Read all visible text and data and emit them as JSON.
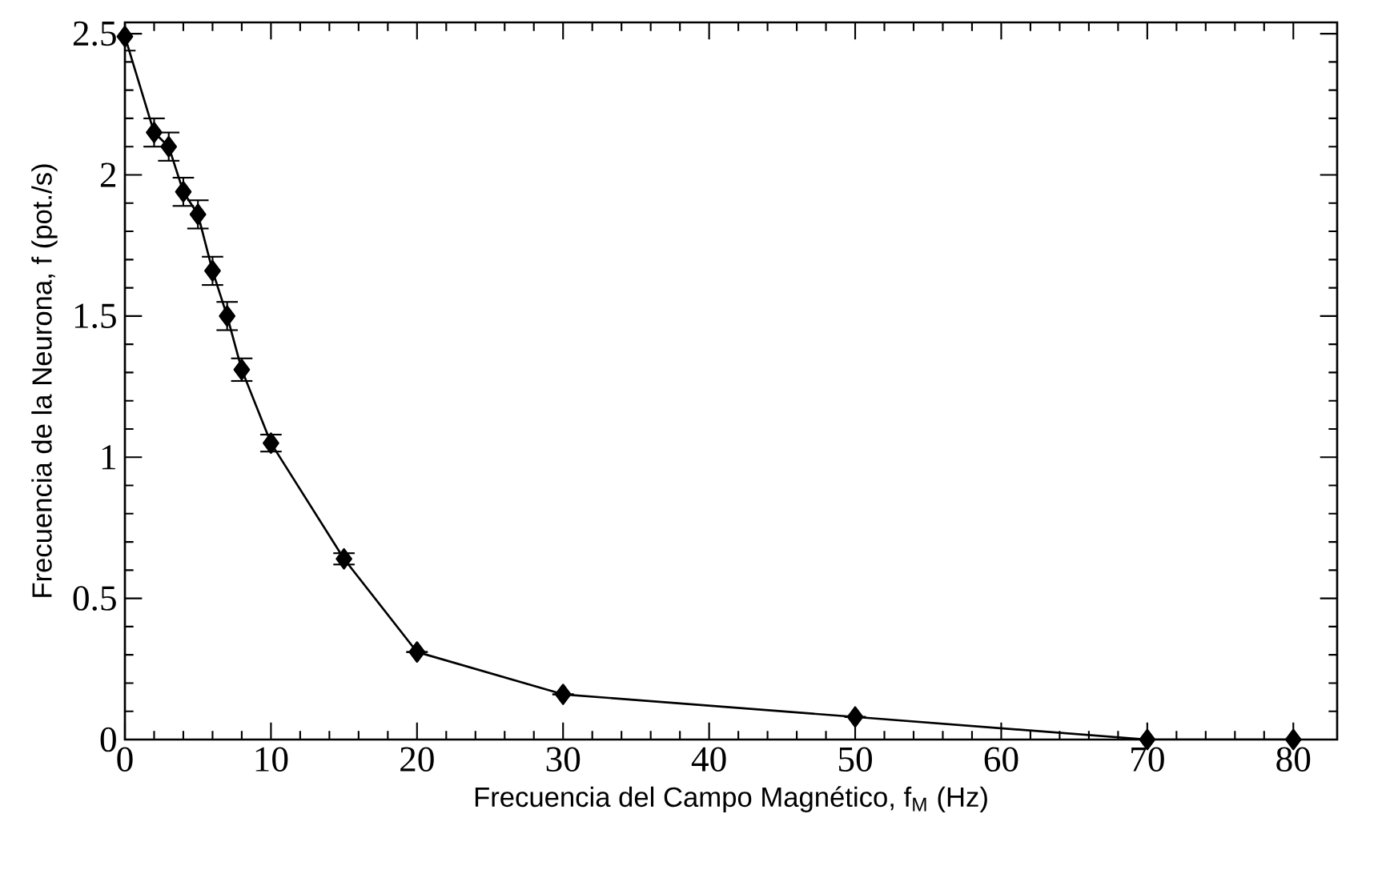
{
  "chart_data": {
    "type": "line",
    "xlabel": "Frecuencia del Campo Magnético, f$_{M}$ (Hz)",
    "ylabel": "Frecuencia de la Neurona, f (pot./s)",
    "xlim": [
      0,
      83
    ],
    "ylim": [
      0,
      2.54
    ],
    "xticks": [
      0,
      10,
      20,
      30,
      40,
      50,
      60,
      70,
      80
    ],
    "yticks": [
      0,
      0.5,
      1,
      1.5,
      2,
      2.5
    ],
    "marker": "diamond",
    "line_style": "solid",
    "series": [
      {
        "color": "#000000",
        "x": [
          0,
          2,
          3,
          4,
          5,
          6,
          7,
          8,
          10,
          15,
          20,
          30,
          50,
          70,
          80
        ],
        "values": [
          2.49,
          2.15,
          2.1,
          1.94,
          1.86,
          1.66,
          1.5,
          1.31,
          1.05,
          0.64,
          0.31,
          0.16,
          0.08,
          0,
          0
        ],
        "errors": [
          0.05,
          0.05,
          0.05,
          0.05,
          0.05,
          0.05,
          0.05,
          0.04,
          0.03,
          0.02,
          null,
          null,
          null,
          null,
          null
        ]
      }
    ]
  }
}
